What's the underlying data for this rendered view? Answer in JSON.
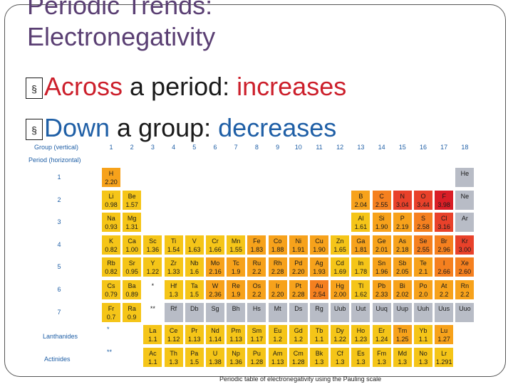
{
  "title": {
    "line1": "Periodic Trends:",
    "line2": "Electronegativity"
  },
  "bullets": [
    {
      "marker": "§",
      "lead": "Across",
      "middle": " a period: ",
      "trend": "increases"
    },
    {
      "marker": "§",
      "lead": "Down",
      "middle": " a group: ",
      "trend": "decreases"
    }
  ],
  "table": {
    "group_label": "Group (vertical)",
    "period_label": "Period (horizontal)",
    "groups": [
      "1",
      "2",
      "3",
      "4",
      "5",
      "6",
      "7",
      "8",
      "9",
      "10",
      "11",
      "12",
      "13",
      "14",
      "15",
      "16",
      "17",
      "18"
    ],
    "periods": [
      "1",
      "2",
      "3",
      "4",
      "5",
      "6",
      "7"
    ],
    "lanthanides_label": "Lanthanides",
    "actinides_label": "Actinides",
    "caption": "Periodic table of electronegativity using the Pauling scale",
    "colors": {
      "grey": "#b8bcc6",
      "yellow": "#f5c518",
      "amber": "#f7a21b",
      "orange": "#f5801f",
      "red": "#e8412a",
      "deep": "#d91e26"
    },
    "main": [
      [
        1,
        1,
        "H",
        "2.20",
        "amber"
      ],
      [
        1,
        18,
        "He",
        "",
        "grey"
      ],
      [
        2,
        1,
        "Li",
        "0.98",
        "yellow"
      ],
      [
        2,
        2,
        "Be",
        "1.57",
        "yellow"
      ],
      [
        2,
        13,
        "B",
        "2.04",
        "amber"
      ],
      [
        2,
        14,
        "C",
        "2.55",
        "orange"
      ],
      [
        2,
        15,
        "N",
        "3.04",
        "red"
      ],
      [
        2,
        16,
        "O",
        "3.44",
        "red"
      ],
      [
        2,
        17,
        "F",
        "3.98",
        "deep"
      ],
      [
        2,
        18,
        "Ne",
        "",
        "grey"
      ],
      [
        3,
        1,
        "Na",
        "0.93",
        "yellow"
      ],
      [
        3,
        2,
        "Mg",
        "1.31",
        "yellow"
      ],
      [
        3,
        13,
        "Al",
        "1.61",
        "yellow"
      ],
      [
        3,
        14,
        "Si",
        "1.90",
        "amber"
      ],
      [
        3,
        15,
        "P",
        "2.19",
        "amber"
      ],
      [
        3,
        16,
        "S",
        "2.58",
        "orange"
      ],
      [
        3,
        17,
        "Cl",
        "3.16",
        "red"
      ],
      [
        3,
        18,
        "Ar",
        "",
        "grey"
      ],
      [
        4,
        1,
        "K",
        "0.82",
        "yellow"
      ],
      [
        4,
        2,
        "Ca",
        "1.00",
        "yellow"
      ],
      [
        4,
        3,
        "Sc",
        "1.36",
        "yellow"
      ],
      [
        4,
        4,
        "Ti",
        "1.54",
        "yellow"
      ],
      [
        4,
        5,
        "V",
        "1.63",
        "yellow"
      ],
      [
        4,
        6,
        "Cr",
        "1.66",
        "yellow"
      ],
      [
        4,
        7,
        "Mn",
        "1.55",
        "yellow"
      ],
      [
        4,
        8,
        "Fe",
        "1.83",
        "amber"
      ],
      [
        4,
        9,
        "Co",
        "1.88",
        "amber"
      ],
      [
        4,
        10,
        "Ni",
        "1.91",
        "amber"
      ],
      [
        4,
        11,
        "Cu",
        "1.90",
        "amber"
      ],
      [
        4,
        12,
        "Zn",
        "1.65",
        "yellow"
      ],
      [
        4,
        13,
        "Ga",
        "1.81",
        "amber"
      ],
      [
        4,
        14,
        "Ge",
        "2.01",
        "amber"
      ],
      [
        4,
        15,
        "As",
        "2.18",
        "amber"
      ],
      [
        4,
        16,
        "Se",
        "2.55",
        "orange"
      ],
      [
        4,
        17,
        "Br",
        "2.96",
        "orange"
      ],
      [
        4,
        18,
        "Kr",
        "3.00",
        "red"
      ],
      [
        5,
        1,
        "Rb",
        "0.82",
        "yellow"
      ],
      [
        5,
        2,
        "Sr",
        "0.95",
        "yellow"
      ],
      [
        5,
        3,
        "Y",
        "1.22",
        "yellow"
      ],
      [
        5,
        4,
        "Zr",
        "1.33",
        "yellow"
      ],
      [
        5,
        5,
        "Nb",
        "1.6",
        "yellow"
      ],
      [
        5,
        6,
        "Mo",
        "2.16",
        "amber"
      ],
      [
        5,
        7,
        "Tc",
        "1.9",
        "amber"
      ],
      [
        5,
        8,
        "Ru",
        "2.2",
        "amber"
      ],
      [
        5,
        9,
        "Rh",
        "2.28",
        "amber"
      ],
      [
        5,
        10,
        "Pd",
        "2.20",
        "amber"
      ],
      [
        5,
        11,
        "Ag",
        "1.93",
        "amber"
      ],
      [
        5,
        12,
        "Cd",
        "1.69",
        "yellow"
      ],
      [
        5,
        13,
        "In",
        "1.78",
        "yellow"
      ],
      [
        5,
        14,
        "Sn",
        "1.96",
        "amber"
      ],
      [
        5,
        15,
        "Sb",
        "2.05",
        "amber"
      ],
      [
        5,
        16,
        "Te",
        "2.1",
        "amber"
      ],
      [
        5,
        17,
        "I",
        "2.66",
        "orange"
      ],
      [
        5,
        18,
        "Xe",
        "2.60",
        "orange"
      ],
      [
        6,
        1,
        "Cs",
        "0.79",
        "yellow"
      ],
      [
        6,
        2,
        "Ba",
        "0.89",
        "yellow"
      ],
      [
        6,
        3,
        "*",
        "",
        "none"
      ],
      [
        6,
        4,
        "Hf",
        "1.3",
        "yellow"
      ],
      [
        6,
        5,
        "Ta",
        "1.5",
        "yellow"
      ],
      [
        6,
        6,
        "W",
        "2.36",
        "amber"
      ],
      [
        6,
        7,
        "Re",
        "1.9",
        "amber"
      ],
      [
        6,
        8,
        "Os",
        "2.2",
        "amber"
      ],
      [
        6,
        9,
        "Ir",
        "2.20",
        "amber"
      ],
      [
        6,
        10,
        "Pt",
        "2.28",
        "amber"
      ],
      [
        6,
        11,
        "Au",
        "2.54",
        "orange"
      ],
      [
        6,
        12,
        "Hg",
        "2.00",
        "amber"
      ],
      [
        6,
        13,
        "Tl",
        "1.62",
        "yellow"
      ],
      [
        6,
        14,
        "Pb",
        "2.33",
        "amber"
      ],
      [
        6,
        15,
        "Bi",
        "2.02",
        "amber"
      ],
      [
        6,
        16,
        "Po",
        "2.0",
        "amber"
      ],
      [
        6,
        17,
        "At",
        "2.2",
        "amber"
      ],
      [
        6,
        18,
        "Rn",
        "2.2",
        "amber"
      ],
      [
        7,
        1,
        "Fr",
        "0.7",
        "yellow"
      ],
      [
        7,
        2,
        "Ra",
        "0.9",
        "yellow"
      ],
      [
        7,
        3,
        "**",
        "",
        "none"
      ],
      [
        7,
        4,
        "Rf",
        "",
        "grey"
      ],
      [
        7,
        5,
        "Db",
        "",
        "grey"
      ],
      [
        7,
        6,
        "Sg",
        "",
        "grey"
      ],
      [
        7,
        7,
        "Bh",
        "",
        "grey"
      ],
      [
        7,
        8,
        "Hs",
        "",
        "grey"
      ],
      [
        7,
        9,
        "Mt",
        "",
        "grey"
      ],
      [
        7,
        10,
        "Ds",
        "",
        "grey"
      ],
      [
        7,
        11,
        "Rg",
        "",
        "grey"
      ],
      [
        7,
        12,
        "Uub",
        "",
        "grey"
      ],
      [
        7,
        13,
        "Uut",
        "",
        "grey"
      ],
      [
        7,
        14,
        "Uuq",
        "",
        "grey"
      ],
      [
        7,
        15,
        "Uup",
        "",
        "grey"
      ],
      [
        7,
        16,
        "Uuh",
        "",
        "grey"
      ],
      [
        7,
        17,
        "Uus",
        "",
        "grey"
      ],
      [
        7,
        18,
        "Uuo",
        "",
        "grey"
      ]
    ],
    "lanthanides": [
      [
        "La",
        "1.1"
      ],
      [
        "Ce",
        "1.12"
      ],
      [
        "Pr",
        "1.13"
      ],
      [
        "Nd",
        "1.14"
      ],
      [
        "Pm",
        "1.13"
      ],
      [
        "Sm",
        "1.17"
      ],
      [
        "Eu",
        "1.2"
      ],
      [
        "Gd",
        "1.2"
      ],
      [
        "Tb",
        "1.1"
      ],
      [
        "Dy",
        "1.22"
      ],
      [
        "Ho",
        "1.23"
      ],
      [
        "Er",
        "1.24"
      ],
      [
        "Tm",
        "1.25"
      ],
      [
        "Yb",
        "1.1"
      ],
      [
        "Lu",
        "1.27"
      ]
    ],
    "actinides": [
      [
        "Ac",
        "1.1"
      ],
      [
        "Th",
        "1.3"
      ],
      [
        "Pa",
        "1.5"
      ],
      [
        "U",
        "1.38"
      ],
      [
        "Np",
        "1.36"
      ],
      [
        "Pu",
        "1.28"
      ],
      [
        "Am",
        "1.13"
      ],
      [
        "Cm",
        "1.28"
      ],
      [
        "Bk",
        "1.3"
      ],
      [
        "Cf",
        "1.3"
      ],
      [
        "Es",
        "1.3"
      ],
      [
        "Fm",
        "1.3"
      ],
      [
        "Md",
        "1.3"
      ],
      [
        "No",
        "1.3"
      ],
      [
        "Lr",
        "1.291"
      ]
    ],
    "series_markers": {
      "lanthanides": "*",
      "actinides": "**"
    }
  }
}
